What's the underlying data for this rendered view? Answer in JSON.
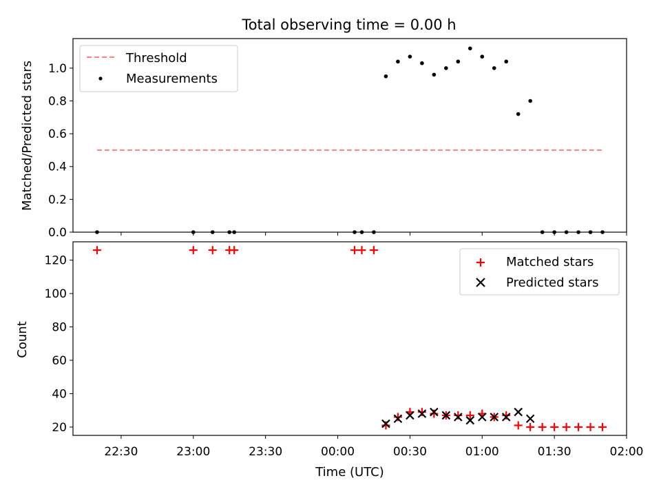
{
  "title": "Total observing time = 0.00 h",
  "chart_data": [
    {
      "type": "scatter",
      "ylabel": "Matched/Predicted stars",
      "ylim": [
        0,
        1.18
      ],
      "yticks": [
        0.0,
        0.2,
        0.4,
        0.6,
        0.8,
        1.0
      ],
      "ytick_labels": [
        "0.0",
        "0.2",
        "0.4",
        "0.6",
        "0.8",
        "1.0"
      ],
      "threshold": {
        "name": "Threshold",
        "value": 0.5,
        "x_start": "22:20",
        "x_end": "01:50",
        "color": "#ff7f7f",
        "style": "dashed"
      },
      "legend": {
        "position": "upper-left",
        "entries": [
          "Threshold",
          "Measurements"
        ]
      },
      "series": [
        {
          "name": "Measurements",
          "color": "#000000",
          "marker": "dot",
          "points": [
            [
              "22:20",
              0.0
            ],
            [
              "23:00",
              0.0
            ],
            [
              "23:08",
              0.0
            ],
            [
              "23:15",
              0.0
            ],
            [
              "23:17",
              0.0
            ],
            [
              "00:07",
              0.0
            ],
            [
              "00:10",
              0.0
            ],
            [
              "00:15",
              0.0
            ],
            [
              "00:20",
              0.95
            ],
            [
              "00:25",
              1.04
            ],
            [
              "00:30",
              1.07
            ],
            [
              "00:35",
              1.03
            ],
            [
              "00:40",
              0.96
            ],
            [
              "00:45",
              1.0
            ],
            [
              "00:50",
              1.04
            ],
            [
              "00:55",
              1.12
            ],
            [
              "01:00",
              1.07
            ],
            [
              "01:05",
              1.0
            ],
            [
              "01:10",
              1.04
            ],
            [
              "01:15",
              0.72
            ],
            [
              "01:20",
              0.8
            ],
            [
              "01:25",
              0.0
            ],
            [
              "01:30",
              0.0
            ],
            [
              "01:35",
              0.0
            ],
            [
              "01:40",
              0.0
            ],
            [
              "01:45",
              0.0
            ],
            [
              "01:50",
              0.0
            ]
          ]
        }
      ]
    },
    {
      "type": "scatter",
      "xlabel": "Time (UTC)",
      "ylabel": "Count",
      "ylim": [
        15,
        131
      ],
      "yticks": [
        20,
        40,
        60,
        80,
        100,
        120
      ],
      "ytick_labels": [
        "20",
        "40",
        "60",
        "80",
        "100",
        "120"
      ],
      "x_range": [
        "22:10",
        "02:00"
      ],
      "xticks": [
        "22:30",
        "23:00",
        "23:30",
        "00:00",
        "00:30",
        "01:00",
        "01:30",
        "02:00"
      ],
      "legend": {
        "position": "upper-right",
        "entries": [
          "Matched stars",
          "Predicted stars"
        ]
      },
      "series": [
        {
          "name": "Matched stars",
          "color": "#ff0000",
          "marker": "plus",
          "points": [
            [
              "22:20",
              126
            ],
            [
              "23:00",
              126
            ],
            [
              "23:08",
              126
            ],
            [
              "23:15",
              126
            ],
            [
              "23:17",
              126
            ],
            [
              "00:07",
              126
            ],
            [
              "00:10",
              126
            ],
            [
              "00:15",
              126
            ],
            [
              "00:20",
              21
            ],
            [
              "00:25",
              26
            ],
            [
              "00:30",
              29
            ],
            [
              "00:35",
              29
            ],
            [
              "00:40",
              28
            ],
            [
              "00:45",
              27
            ],
            [
              "00:50",
              27
            ],
            [
              "00:55",
              27
            ],
            [
              "01:00",
              28
            ],
            [
              "01:05",
              26
            ],
            [
              "01:10",
              27
            ],
            [
              "01:15",
              21
            ],
            [
              "01:20",
              20
            ],
            [
              "01:25",
              20
            ],
            [
              "01:30",
              20
            ],
            [
              "01:35",
              20
            ],
            [
              "01:40",
              20
            ],
            [
              "01:45",
              20
            ],
            [
              "01:50",
              20
            ]
          ]
        },
        {
          "name": "Predicted stars",
          "color": "#000000",
          "marker": "x",
          "points": [
            [
              "00:20",
              22
            ],
            [
              "00:25",
              25
            ],
            [
              "00:30",
              27
            ],
            [
              "00:35",
              28
            ],
            [
              "00:40",
              29
            ],
            [
              "00:45",
              27
            ],
            [
              "00:50",
              26
            ],
            [
              "00:55",
              24
            ],
            [
              "01:00",
              26
            ],
            [
              "01:05",
              26
            ],
            [
              "01:10",
              26
            ],
            [
              "01:15",
              29
            ],
            [
              "01:20",
              25
            ]
          ]
        }
      ]
    }
  ]
}
